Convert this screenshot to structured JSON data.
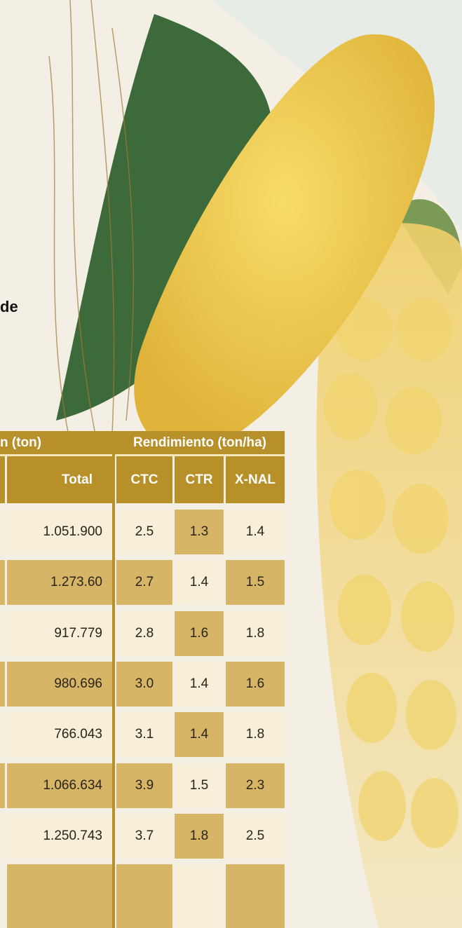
{
  "text": {
    "fragment": "de"
  },
  "table": {
    "group_headers": [
      "n (ton)",
      "Rendimiento (ton/ha)"
    ],
    "columns": [
      "Total",
      "CTC",
      "CTR",
      "X-NAL"
    ],
    "rows": [
      [
        "1.051.900",
        "2.5",
        "1.3",
        "1.4"
      ],
      [
        "1.273.60",
        "2.7",
        "1.4",
        "1.5"
      ],
      [
        "917.779",
        "2.8",
        "1.6",
        "1.8"
      ],
      [
        "980.696",
        "3.0",
        "1.4",
        "1.6"
      ],
      [
        "766.043",
        "3.1",
        "1.4",
        "1.8"
      ],
      [
        "1.066.634",
        "3.9",
        "1.5",
        "2.3"
      ],
      [
        "1.250.743",
        "3.7",
        "1.8",
        "2.5"
      ]
    ]
  }
}
